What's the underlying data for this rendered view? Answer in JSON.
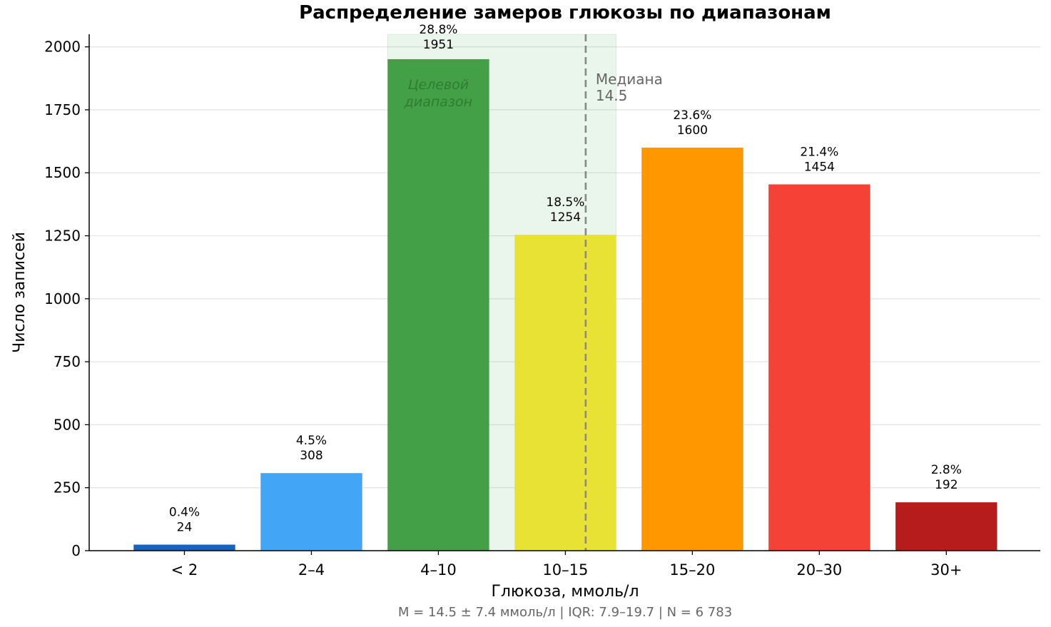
{
  "chart_data": {
    "type": "bar",
    "title": "Распределение замеров глюкозы по диапазонам",
    "xlabel": "Глюкоза, ммоль/л",
    "ylabel": "Число записей",
    "subtitle": "M = 14.5 ± 7.4 ммоль/л | IQR: 7.9–19.7 | N = 6 783",
    "categories": [
      "< 2",
      "2–4",
      "4–10",
      "10–15",
      "15–20",
      "20–30",
      "30+"
    ],
    "values": [
      24,
      308,
      1951,
      1254,
      1600,
      1454,
      192
    ],
    "percent_labels": [
      "0.4%",
      "4.5%",
      "28.8%",
      "18.5%",
      "23.6%",
      "21.4%",
      "2.8%"
    ],
    "colors": [
      "#1565c0",
      "#42a5f5",
      "#43a047",
      "#e8e235",
      "#ff9800",
      "#f44336",
      "#b71c1c"
    ],
    "ylim": [
      0,
      2050
    ],
    "yticks": [
      0,
      250,
      500,
      750,
      1000,
      1250,
      1500,
      1750,
      2000
    ],
    "grid": "y",
    "target_range": {
      "label_line1": "Целевой",
      "label_line2": "диапазон",
      "color": "#43a047",
      "from_category": "4–10",
      "to_category": "10–15"
    },
    "median": {
      "label": "Медиана",
      "value": "14.5",
      "category_position": 3.16
    }
  }
}
